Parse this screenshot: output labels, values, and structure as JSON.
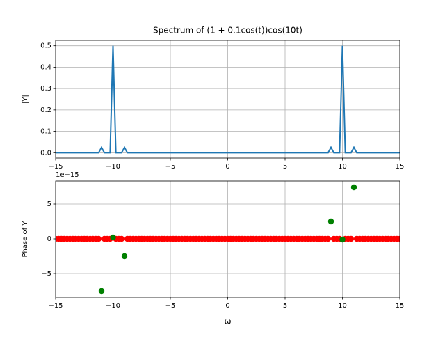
{
  "chart_data": [
    {
      "type": "line",
      "title": "Spectrum of (1 + 0.1cos(t))cos(10t)",
      "ylabel": "|Y|",
      "grid": true,
      "xlim": [
        -15,
        15
      ],
      "ylim": [
        -0.025,
        0.525
      ],
      "xticks": [
        {
          "value": -15,
          "label": "−15"
        },
        {
          "value": -10,
          "label": "−10"
        },
        {
          "value": -5,
          "label": "−5"
        },
        0,
        5,
        10,
        15
      ],
      "yticks": [
        {
          "value": 0,
          "label": "0.0"
        },
        {
          "value": 0.1,
          "label": "0.1"
        },
        {
          "value": 0.2,
          "label": "0.2"
        },
        {
          "value": 0.3,
          "label": "0.3"
        },
        {
          "value": 0.4,
          "label": "0.4"
        },
        {
          "value": 0.5,
          "label": "0.5"
        }
      ],
      "x": [
        -15,
        -14.75,
        -14.5,
        -14.25,
        -14,
        -13.75,
        -13.5,
        -13.25,
        -13,
        -12.75,
        -12.5,
        -12.25,
        -12,
        -11.75,
        -11.5,
        -11.25,
        -11,
        -10.75,
        -10.5,
        -10.25,
        -10,
        -9.75,
        -9.5,
        -9.25,
        -9,
        -8.75,
        -8.5,
        -8.25,
        -8,
        -7.75,
        -7.5,
        -7.25,
        -7,
        -6.75,
        -6.5,
        -6.25,
        -6,
        -5.75,
        -5.5,
        -5.25,
        -5,
        -4.75,
        -4.5,
        -4.25,
        -4,
        -3.75,
        -3.5,
        -3.25,
        -3,
        -2.75,
        -2.5,
        -2.25,
        -2,
        -1.75,
        -1.5,
        -1.25,
        -1,
        -0.75,
        -0.5,
        -0.25,
        0,
        0.25,
        0.5,
        0.75,
        1,
        1.25,
        1.5,
        1.75,
        2,
        2.25,
        2.5,
        2.75,
        3,
        3.25,
        3.5,
        3.75,
        4,
        4.25,
        4.5,
        4.75,
        5,
        5.25,
        5.5,
        5.75,
        6,
        6.25,
        6.5,
        6.75,
        7,
        7.25,
        7.5,
        7.75,
        8,
        8.25,
        8.5,
        8.75,
        9,
        9.25,
        9.5,
        9.75,
        10,
        10.25,
        10.5,
        10.75,
        11,
        11.25,
        11.5,
        11.75,
        12,
        12.25,
        12.5,
        12.75,
        13,
        13.25,
        13.5,
        13.75,
        14,
        14.25,
        14.5,
        14.75,
        15
      ],
      "series": [
        {
          "color": "#1f77b4",
          "values": [
            0,
            0,
            0,
            0,
            0,
            0,
            0,
            0,
            0,
            0,
            0,
            0,
            0,
            0,
            0,
            0,
            0.025,
            0,
            0,
            0,
            0.5,
            0,
            0,
            0,
            0.025,
            0,
            0,
            0,
            0,
            0,
            0,
            0,
            0,
            0,
            0,
            0,
            0,
            0,
            0,
            0,
            0,
            0,
            0,
            0,
            0,
            0,
            0,
            0,
            0,
            0,
            0,
            0,
            0,
            0,
            0,
            0,
            0,
            0,
            0,
            0,
            0,
            0,
            0,
            0,
            0,
            0,
            0,
            0,
            0,
            0,
            0,
            0,
            0,
            0,
            0,
            0,
            0,
            0,
            0,
            0,
            0,
            0,
            0,
            0,
            0,
            0,
            0,
            0,
            0,
            0,
            0,
            0,
            0,
            0,
            0,
            0,
            0.025,
            0,
            0,
            0,
            0.5,
            0,
            0,
            0,
            0.025,
            0,
            0,
            0,
            0,
            0,
            0,
            0,
            0,
            0,
            0,
            0,
            0,
            0,
            0,
            0,
            0
          ]
        }
      ]
    },
    {
      "type": "scatter",
      "xlabel": "ω",
      "ylabel": "Phase of Y",
      "offset_text": "1e−15",
      "grid": true,
      "xlim": [
        -15,
        15
      ],
      "ylim": [
        -8.4,
        8.3
      ],
      "xticks": [
        {
          "value": -15,
          "label": "−15"
        },
        {
          "value": -10,
          "label": "−10"
        },
        {
          "value": -5,
          "label": "−5"
        },
        0,
        5,
        10,
        15
      ],
      "yticks": [
        {
          "value": -5,
          "label": "−5"
        },
        0,
        5
      ],
      "x": [
        -15,
        -14.75,
        -14.5,
        -14.25,
        -14,
        -13.75,
        -13.5,
        -13.25,
        -13,
        -12.75,
        -12.5,
        -12.25,
        -12,
        -11.75,
        -11.5,
        -11.25,
        -11,
        -10.75,
        -10.5,
        -10.25,
        -10,
        -9.75,
        -9.5,
        -9.25,
        -9,
        -8.75,
        -8.5,
        -8.25,
        -8,
        -7.75,
        -7.5,
        -7.25,
        -7,
        -6.75,
        -6.5,
        -6.25,
        -6,
        -5.75,
        -5.5,
        -5.25,
        -5,
        -4.75,
        -4.5,
        -4.25,
        -4,
        -3.75,
        -3.5,
        -3.25,
        -3,
        -2.75,
        -2.5,
        -2.25,
        -2,
        -1.75,
        -1.5,
        -1.25,
        -1,
        -0.75,
        -0.5,
        -0.25,
        0,
        0.25,
        0.5,
        0.75,
        1,
        1.25,
        1.5,
        1.75,
        2,
        2.25,
        2.5,
        2.75,
        3,
        3.25,
        3.5,
        3.75,
        4,
        4.25,
        4.5,
        4.75,
        5,
        5.25,
        5.5,
        5.75,
        6,
        6.25,
        6.5,
        6.75,
        7,
        7.25,
        7.5,
        7.75,
        8,
        8.25,
        8.5,
        8.75,
        9,
        9.25,
        9.5,
        9.75,
        10,
        10.25,
        10.5,
        10.75,
        11,
        11.25,
        11.5,
        11.75,
        12,
        12.25,
        12.5,
        12.75,
        13,
        13.25,
        13.5,
        13.75,
        14,
        14.25,
        14.5,
        14.75,
        15
      ],
      "series": [
        {
          "color": "#ff0000",
          "values": [
            0,
            0,
            0,
            0,
            0,
            0,
            0,
            0,
            0,
            0,
            0,
            0,
            0,
            0,
            0,
            0,
            null,
            0,
            0,
            0,
            null,
            0,
            0,
            0,
            null,
            0,
            0,
            0,
            0,
            0,
            0,
            0,
            0,
            0,
            0,
            0,
            0,
            0,
            0,
            0,
            0,
            0,
            0,
            0,
            0,
            0,
            0,
            0,
            0,
            0,
            0,
            0,
            0,
            0,
            0,
            0,
            0,
            0,
            0,
            0,
            0,
            0,
            0,
            0,
            0,
            0,
            0,
            0,
            0,
            0,
            0,
            0,
            0,
            0,
            0,
            0,
            0,
            0,
            0,
            0,
            0,
            0,
            0,
            0,
            0,
            0,
            0,
            0,
            0,
            0,
            0,
            0,
            0,
            0,
            0,
            0,
            null,
            0,
            0,
            0,
            null,
            0,
            0,
            0,
            null,
            0,
            0,
            0,
            0,
            0,
            0,
            0,
            0,
            0,
            0,
            0,
            0,
            0,
            0,
            0,
            0
          ]
        },
        {
          "color": "#008000",
          "values": [
            null,
            null,
            null,
            null,
            null,
            null,
            null,
            null,
            null,
            null,
            null,
            null,
            null,
            null,
            null,
            null,
            -7.5,
            null,
            null,
            null,
            0.2,
            null,
            null,
            null,
            -2.5,
            null,
            null,
            null,
            null,
            null,
            null,
            null,
            null,
            null,
            null,
            null,
            null,
            null,
            null,
            null,
            null,
            null,
            null,
            null,
            null,
            null,
            null,
            null,
            null,
            null,
            null,
            null,
            null,
            null,
            null,
            null,
            null,
            null,
            null,
            null,
            null,
            null,
            null,
            null,
            null,
            null,
            null,
            null,
            null,
            null,
            null,
            null,
            null,
            null,
            null,
            null,
            null,
            null,
            null,
            null,
            null,
            null,
            null,
            null,
            null,
            null,
            null,
            null,
            null,
            null,
            null,
            null,
            null,
            null,
            null,
            null,
            2.5,
            null,
            null,
            null,
            -0.1,
            null,
            null,
            null,
            7.4,
            null,
            null,
            null,
            null,
            null,
            null,
            null,
            null,
            null,
            null,
            null,
            null,
            null,
            null,
            null,
            null
          ]
        }
      ]
    }
  ]
}
